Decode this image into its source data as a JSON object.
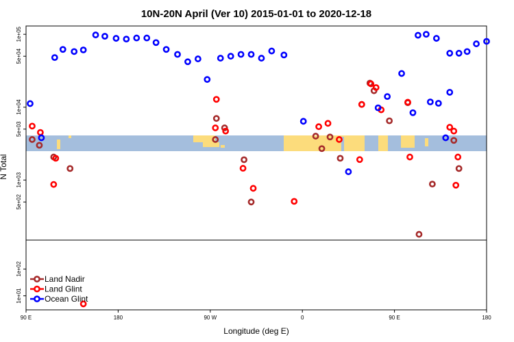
{
  "chart_data": {
    "type": "scatter",
    "title": "10N-20N April (Ver 10)   2015-01-01 to 2020-12-18",
    "xlabel": "Longitude (deg E)",
    "ylabel": "N Total",
    "x_ticks": [
      {
        "value": 90,
        "label": "90 E"
      },
      {
        "value": 180,
        "label": "180"
      },
      {
        "value": 270,
        "label": "90 W"
      },
      {
        "value": 360,
        "label": "0"
      },
      {
        "value": 450,
        "label": "90 E"
      },
      {
        "value": 540,
        "label": "180"
      }
    ],
    "xlim": [
      90,
      540
    ],
    "upper_panel": {
      "scale": "log",
      "ylim": [
        150,
        130000
      ],
      "y_ticks": [
        {
          "value": 100000,
          "label": "1e+05"
        },
        {
          "value": 50000,
          "label": "5e+04"
        },
        {
          "value": 10000,
          "label": "1e+04"
        },
        {
          "value": 5000,
          "label": "5e+03"
        },
        {
          "value": 1000,
          "label": "1e+03"
        },
        {
          "value": 500,
          "label": "5e+02"
        }
      ]
    },
    "lower_panel": {
      "scale": "log",
      "ylim": [
        3,
        1200
      ],
      "y_ticks": [
        {
          "value": 100,
          "label": "1e+02"
        },
        {
          "value": 10,
          "label": "1e+01"
        }
      ]
    },
    "legend": {
      "position": "bottom-left"
    },
    "colors": {
      "land_nadir": "#a52a2a",
      "land_glint": "#ff0000",
      "ocean_glint": "#0000ff",
      "ocean_band": "#a4bedd",
      "land_band": "#fcdc7c"
    },
    "series": [
      {
        "name": "Land Nadir",
        "color": "#a52a2a",
        "points": [
          [
            96,
            3600
          ],
          [
            103,
            3000
          ],
          [
            117,
            2070
          ],
          [
            133,
            1440
          ],
          [
            275,
            3600
          ],
          [
            276,
            7000
          ],
          [
            284,
            5200
          ],
          [
            303,
            1900
          ],
          [
            310,
            500
          ],
          [
            373,
            4000
          ],
          [
            379,
            2700
          ],
          [
            387,
            3900
          ],
          [
            397,
            1990
          ],
          [
            418,
            10900
          ],
          [
            426,
            21400
          ],
          [
            430,
            16800
          ],
          [
            445,
            6500
          ],
          [
            463,
            11500
          ],
          [
            487,
            880
          ],
          [
            508,
            3500
          ],
          [
            513,
            1440
          ],
          [
            474,
            180
          ]
        ]
      },
      {
        "name": "Land Glint",
        "color": "#ff0000",
        "points": [
          [
            96,
            5500
          ],
          [
            104,
            4500
          ],
          [
            119,
            1990
          ],
          [
            117,
            870
          ],
          [
            275,
            5200
          ],
          [
            276,
            12800
          ],
          [
            285,
            4700
          ],
          [
            302,
            1450
          ],
          [
            312,
            770
          ],
          [
            352,
            510
          ],
          [
            376,
            5400
          ],
          [
            385,
            6000
          ],
          [
            396,
            3600
          ],
          [
            416,
            1910
          ],
          [
            418,
            10900
          ],
          [
            427,
            20900
          ],
          [
            432,
            18600
          ],
          [
            437,
            9200
          ],
          [
            463,
            11700
          ],
          [
            465,
            2070
          ],
          [
            504,
            5300
          ],
          [
            508,
            4700
          ],
          [
            510,
            850
          ],
          [
            512,
            2070
          ],
          [
            146,
            5
          ]
        ]
      },
      {
        "name": "Ocean Glint",
        "color": "#0000ff",
        "points": [
          [
            94,
            11200
          ],
          [
            105,
            3800
          ],
          [
            118,
            48000
          ],
          [
            126,
            62000
          ],
          [
            137,
            58000
          ],
          [
            146,
            61000
          ],
          [
            158,
            98000
          ],
          [
            167,
            94000
          ],
          [
            178,
            88000
          ],
          [
            188,
            86000
          ],
          [
            198,
            89000
          ],
          [
            208,
            89000
          ],
          [
            217,
            77000
          ],
          [
            227,
            62000
          ],
          [
            238,
            53000
          ],
          [
            248,
            42000
          ],
          [
            258,
            46000
          ],
          [
            267,
            24000
          ],
          [
            280,
            47000
          ],
          [
            290,
            50000
          ],
          [
            300,
            53000
          ],
          [
            310,
            53000
          ],
          [
            320,
            47000
          ],
          [
            330,
            59000
          ],
          [
            342,
            52000
          ],
          [
            361,
            6400
          ],
          [
            405,
            1300
          ],
          [
            434,
            9800
          ],
          [
            443,
            14000
          ],
          [
            457,
            29000
          ],
          [
            468,
            8400
          ],
          [
            485,
            11800
          ],
          [
            493,
            11300
          ],
          [
            500,
            3800
          ],
          [
            504,
            16000
          ],
          [
            540,
            80000
          ],
          [
            530,
            74000
          ],
          [
            521,
            58000
          ],
          [
            513,
            55000
          ],
          [
            504,
            55000
          ],
          [
            491,
            88000
          ],
          [
            481,
            100000
          ],
          [
            473,
            97000
          ]
        ]
      }
    ]
  }
}
